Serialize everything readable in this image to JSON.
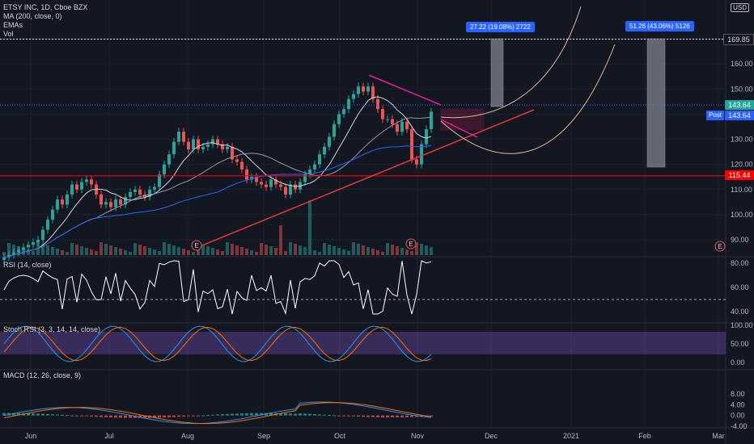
{
  "legend": {
    "symbol_line": "ETSY INC, 1D, Cboe BZX",
    "ma_line": "MA (200, close, 0)",
    "emas_line": "EMAs",
    "vol_line": "Vol"
  },
  "panes": {
    "rsi_label": "RSI (14, close)",
    "stoch_label": "Stoch RSI (3, 3, 14, 14, close)",
    "macd_label": "MACD (12, 26, close, 9)"
  },
  "currency": "USD",
  "price_axis_ticks": [
    "170.00",
    "160.00",
    "150.00",
    "140.00",
    "130.00",
    "120.00",
    "110.00",
    "100.00",
    "90.00"
  ],
  "rsi_ticks": [
    "80.00",
    "60.00",
    "40.00"
  ],
  "stoch_ticks": [
    "100.00",
    "50.00",
    "0.00"
  ],
  "macd_ticks": [
    "8.00",
    "4.00",
    "0.00",
    "-4.00"
  ],
  "time_ticks": [
    "Jun",
    "Jul",
    "Aug",
    "Sep",
    "Oct",
    "Nov",
    "Dec",
    "2021",
    "Feb",
    "Mar"
  ],
  "price_tags": {
    "target": "169.85",
    "last": "143.64",
    "post_label": "Post",
    "post_value": "143.64",
    "support": "115.44"
  },
  "callouts": {
    "first": "27.22 (19.08%) 2722",
    "second": "51.26 (43.06%) 5126"
  },
  "earnings_marker": "E",
  "colors": {
    "background": "#131722",
    "up": "#26a69a",
    "down": "#ef5350",
    "support_line": "#ff0000",
    "trend_line": "#e53935",
    "wedge_line": "#e91e9a",
    "projection": "#e8b896",
    "target_dotted": "#ffffff",
    "blue_tag": "#2962ff",
    "stoch_band": "#7e57c2"
  },
  "chart_data": {
    "type": "candlestick",
    "symbol": "ETSY INC",
    "interval": "1D",
    "exchange": "Cboe BZX",
    "price_range": [
      85,
      176
    ],
    "horizontal_levels": {
      "target": 169.85,
      "last": 143.64,
      "support": 115.44
    },
    "closes": [
      83,
      84,
      85,
      86,
      87,
      88,
      89,
      90,
      94,
      98,
      102,
      106,
      104,
      108,
      112,
      110,
      113,
      114,
      112,
      108,
      104,
      105,
      103,
      106,
      104,
      107,
      109,
      110,
      108,
      107,
      110,
      111,
      116,
      120,
      124,
      129,
      133,
      129,
      126,
      130,
      126,
      127,
      128,
      130,
      128,
      126,
      127,
      122,
      121,
      118,
      114,
      115,
      113,
      112,
      111,
      114,
      112,
      111,
      108,
      112,
      110,
      113,
      116,
      118,
      120,
      124,
      127,
      131,
      136,
      140,
      142,
      146,
      148,
      151,
      149,
      151,
      146,
      142,
      138,
      138,
      136,
      133,
      137,
      134,
      122,
      120,
      128,
      134,
      141
    ],
    "rsi_range": [
      35,
      85
    ],
    "stoch_range": [
      0,
      100
    ],
    "macd_range": [
      -5,
      10
    ]
  }
}
